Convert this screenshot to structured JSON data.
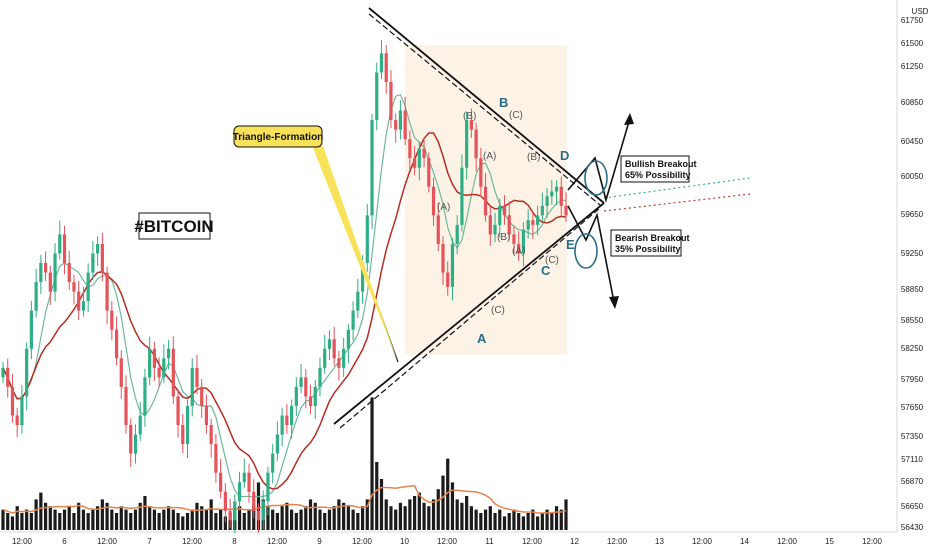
{
  "chart_data": {
    "type": "candlestick",
    "title": "#BITCOIN",
    "currency": "USD",
    "ylim": [
      56430,
      61750
    ],
    "y_ticks": [
      "61750",
      "61500",
      "61250",
      "60850",
      "60450",
      "60050",
      "59650",
      "59250",
      "58850",
      "58550",
      "58250",
      "57950",
      "57650",
      "57350",
      "57110",
      "56870",
      "56650",
      "56430"
    ],
    "x_ticks": [
      "12:00",
      "6",
      "12:00",
      "7",
      "12:00",
      "8",
      "12:00",
      "9",
      "12:00",
      "10",
      "12:00",
      "11",
      "12:00",
      "12",
      "12:00",
      "13",
      "12:00",
      "14",
      "12:00",
      "15",
      "12:00"
    ],
    "annotations": {
      "triangle_label": "Triangle-Formation",
      "bullish": {
        "line1": "Bullish Breakout",
        "line2": "65% Possibility"
      },
      "bearish": {
        "line1": "Bearish Breakout",
        "line2": "35% Possibility"
      },
      "points": [
        "A",
        "B",
        "C",
        "D",
        "E"
      ],
      "waves": [
        "(A)",
        "(B)",
        "(C)",
        "(A)",
        "(B)",
        "(C)",
        "(A)",
        "(B)",
        "(C)",
        "(A)",
        "(B)",
        "(C)"
      ]
    },
    "close": [
      58100,
      57900,
      57600,
      57500,
      57800,
      58300,
      58700,
      59000,
      59200,
      59100,
      58900,
      59300,
      59500,
      59200,
      59000,
      58900,
      58700,
      58800,
      59100,
      59300,
      59400,
      59100,
      58700,
      58500,
      58200,
      57900,
      57500,
      57200,
      57400,
      57600,
      58000,
      58300,
      58100,
      58000,
      58200,
      58300,
      57800,
      57500,
      57300,
      57700,
      58100,
      57900,
      57700,
      57500,
      57300,
      57000,
      56800,
      56600,
      56500,
      56700,
      56900,
      57000,
      56800,
      56600,
      56500,
      56700,
      57000,
      57200,
      57400,
      57600,
      57500,
      57700,
      57900,
      58000,
      57800,
      57700,
      57900,
      58100,
      58300,
      58400,
      58200,
      58100,
      58300,
      58500,
      58700,
      58900,
      59200,
      59700,
      60700,
      61200,
      61400,
      61100,
      60700,
      60600,
      60800,
      60500,
      60300,
      60200,
      60400,
      60300,
      60000,
      59700,
      59400,
      59100,
      58950,
      59400,
      59600,
      60200,
      60700,
      60600,
      60300,
      60000,
      59700,
      59500,
      59600,
      59800,
      59700,
      59500,
      59400,
      59300,
      59550,
      59650,
      59600,
      59700,
      59800,
      59900,
      59950,
      60000,
      59800,
      59700
    ],
    "volume": [
      0.6,
      0.5,
      0.4,
      0.7,
      0.5,
      0.6,
      0.5,
      0.9,
      1.1,
      0.8,
      0.7,
      0.6,
      0.5,
      0.6,
      0.7,
      0.5,
      0.8,
      0.6,
      0.5,
      0.6,
      0.7,
      0.9,
      0.8,
      0.6,
      0.5,
      0.7,
      0.6,
      0.5,
      0.6,
      0.8,
      1.0,
      0.7,
      0.6,
      0.5,
      0.6,
      0.7,
      0.6,
      0.5,
      0.4,
      0.5,
      0.6,
      0.8,
      0.7,
      0.6,
      0.9,
      0.5,
      0.6,
      0.4,
      0.5,
      0.6,
      0.7,
      0.5,
      0.6,
      0.7,
      1.4,
      0.9,
      0.7,
      0.6,
      0.5,
      0.7,
      0.8,
      0.6,
      0.5,
      0.6,
      0.7,
      0.9,
      0.8,
      0.6,
      0.5,
      0.6,
      0.7,
      0.9,
      0.8,
      0.7,
      0.6,
      0.5,
      0.7,
      0.9,
      3.9,
      2.0,
      1.5,
      0.9,
      0.7,
      0.6,
      0.8,
      0.7,
      0.9,
      1.0,
      1.1,
      0.8,
      0.7,
      0.9,
      1.2,
      1.6,
      2.1,
      1.4,
      0.9,
      0.8,
      1.0,
      0.7,
      0.6,
      0.5,
      0.6,
      0.7,
      0.5,
      0.6,
      0.4,
      0.5,
      0.6,
      0.5,
      0.4,
      0.5,
      0.6,
      0.4,
      0.5,
      0.6,
      0.5,
      0.7,
      0.6,
      0.9
    ]
  }
}
